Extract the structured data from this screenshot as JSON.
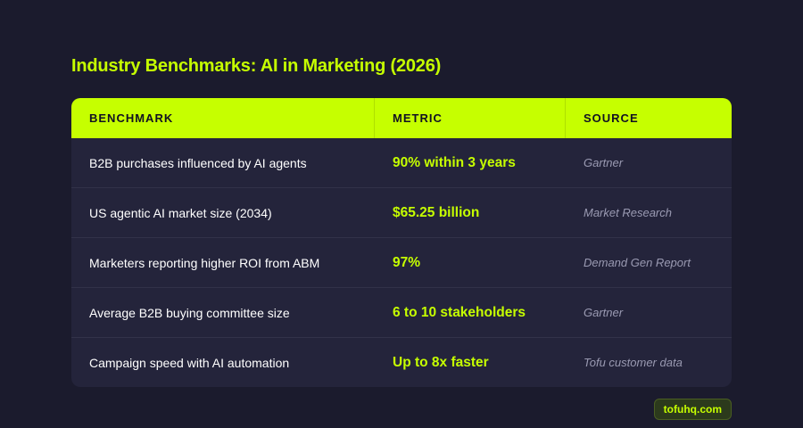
{
  "title": "Industry Benchmarks: AI in Marketing (2026)",
  "table": {
    "headers": [
      "BENCHMARK",
      "METRIC",
      "SOURCE"
    ],
    "rows": [
      {
        "benchmark": "B2B purchases influenced by AI agents",
        "metric": "90% within 3 years",
        "source": "Gartner"
      },
      {
        "benchmark": "US agentic AI market size (2034)",
        "metric": "$65.25 billion",
        "source": "Market Research"
      },
      {
        "benchmark": "Marketers reporting higher ROI from ABM",
        "metric": "97%",
        "source": "Demand Gen Report"
      },
      {
        "benchmark": "Average B2B buying committee size",
        "metric": "6 to 10 stakeholders",
        "source": "Gartner"
      },
      {
        "benchmark": "Campaign speed with AI automation",
        "metric": "Up to 8x faster",
        "source": "Tofu customer data"
      }
    ]
  },
  "brand": "tofuhq.com",
  "colors": {
    "background": "#1b1b2d",
    "accent": "#c6ff00",
    "table_body": "#24243b",
    "source_text": "#9a9ab2"
  }
}
